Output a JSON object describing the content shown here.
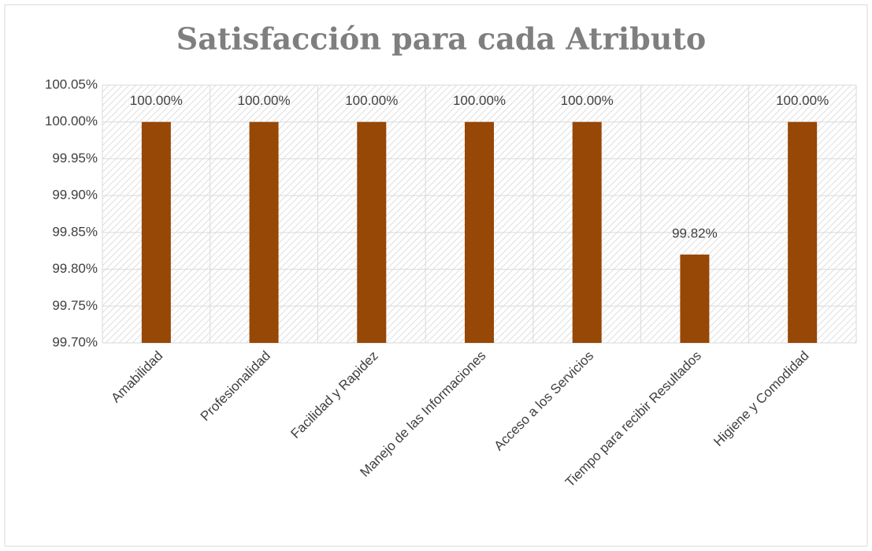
{
  "chart_data": {
    "type": "bar",
    "title": "Satisfacción para cada Atributo",
    "categories": [
      "Amabilidad",
      "Profesionalidad",
      "Facilidad y Rapidez",
      "Manejo de las Informaciones",
      "Acceso a los Servicios",
      "Tiempo para recibir Resultados",
      "Higiene y Comodidad"
    ],
    "values": [
      100,
      100,
      100,
      100,
      100,
      99.82,
      100
    ],
    "value_labels": [
      "100.00%",
      "100.00%",
      "100.00%",
      "100.00%",
      "100.00%",
      "99.82%",
      "100.00%"
    ],
    "color": "#974706",
    "ylim": [
      99.7,
      100.05
    ],
    "yticks": [
      {
        "value": 99.7,
        "label": "99.70%"
      },
      {
        "value": 99.75,
        "label": "99.75%"
      },
      {
        "value": 99.8,
        "label": "99.80%"
      },
      {
        "value": 99.85,
        "label": "99.85%"
      },
      {
        "value": 99.9,
        "label": "99.90%"
      },
      {
        "value": 99.95,
        "label": "99.95%"
      },
      {
        "value": 100,
        "label": "100.00%"
      },
      {
        "value": 100.05,
        "label": "100.05%"
      }
    ],
    "grid": true
  }
}
